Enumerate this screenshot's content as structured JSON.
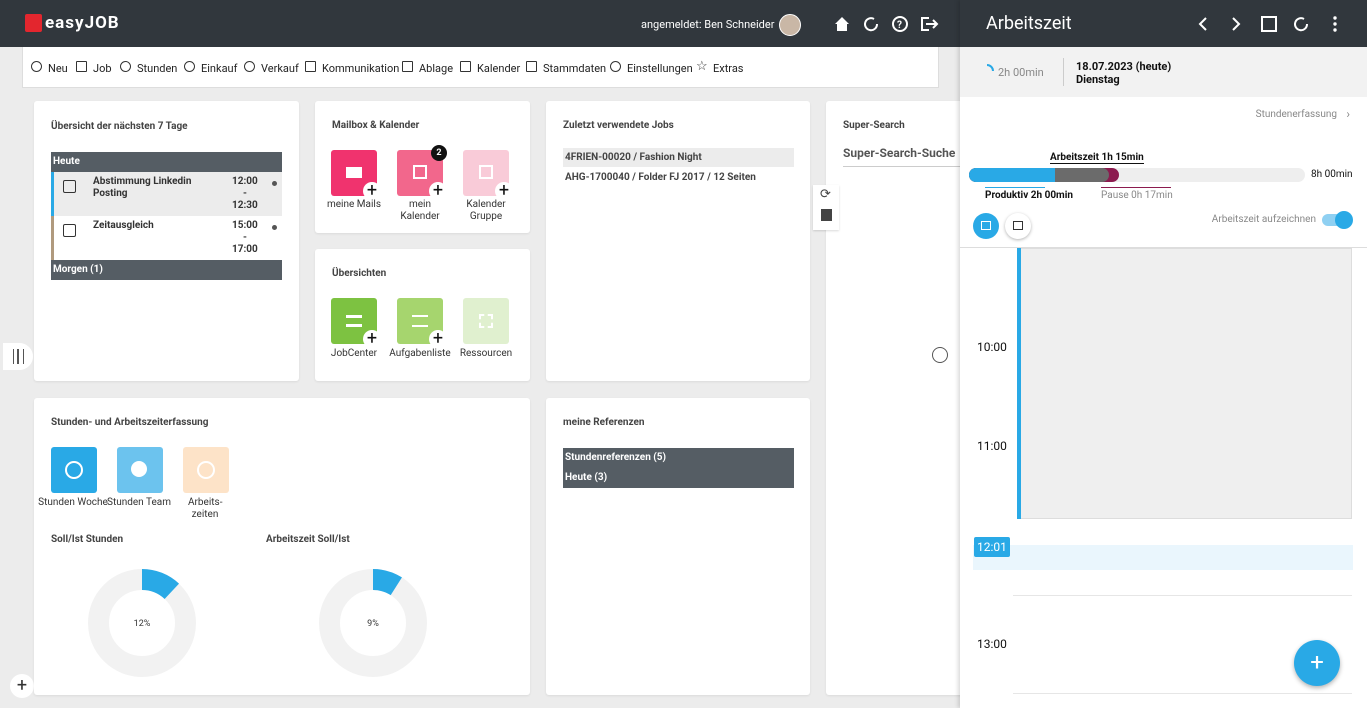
{
  "header": {
    "logo": "easyJOB",
    "user": "angemeldet: Ben Schneider"
  },
  "toolbar": [
    "Neu",
    "Job",
    "Stunden",
    "Einkauf",
    "Verkauf",
    "Kommunikation",
    "Ablage",
    "Kalender",
    "Stammdaten",
    "Einstellungen",
    "Extras"
  ],
  "overview": {
    "title": "Übersicht der nächsten 7 Tage",
    "today": "Heute",
    "time_separator": "-",
    "events": [
      {
        "title": "Abstimmung Linkedin Posting",
        "start": "12:00",
        "end": "12:30"
      },
      {
        "title": "Zeitausgleich",
        "start": "15:00",
        "end": "17:00"
      }
    ],
    "tomorrow": "Morgen (1)"
  },
  "mailbox": {
    "title": "Mailbox & Kalender",
    "badge": "2",
    "tiles": [
      "meine Mails",
      "mein Kalender",
      "Kalender Gruppe"
    ]
  },
  "overviews": {
    "title": "Übersichten",
    "tiles": [
      "JobCenter",
      "Aufgabenliste",
      "Ressourcen"
    ]
  },
  "recent_jobs": {
    "title": "Zuletzt verwendete Jobs",
    "items": [
      "4FRIEN-00020 / Fashion Night",
      "AHG-1700040 / Folder FJ 2017 / 12 Seiten"
    ]
  },
  "super_search": {
    "title": "Super-Search",
    "placeholder": "Super-Search-Suche"
  },
  "hours": {
    "title": "Stunden- und Arbeitszeiterfassung",
    "tiles": [
      "Stunden Woche",
      "Stunden Team",
      "Arbeits- zeiten"
    ],
    "charts": [
      {
        "title": "Soll/Ist Stunden",
        "value": 12,
        "label": "12%"
      },
      {
        "title": "Arbeitszeit Soll/Ist",
        "value": 9,
        "label": "9%"
      }
    ]
  },
  "references": {
    "title": "meine Referenzen",
    "rows": [
      "Stundenreferenzen (5)",
      "Heute (3)"
    ]
  },
  "panel": {
    "title": "Arbeitszeit",
    "timer": "2h 00min",
    "date": "18.07.2023 (heute)",
    "weekday": "Dienstag",
    "link": "Stundenerfassung",
    "worktime": "Arbeitszeit 1h 15min",
    "total": "8h 00min",
    "productive": "Produktiv 2h 00min",
    "pause": "Pause 0h 17min",
    "record": "Arbeitszeit aufzeichnen",
    "times": [
      "10:00",
      "11:00",
      "12:01",
      "13:00"
    ]
  }
}
